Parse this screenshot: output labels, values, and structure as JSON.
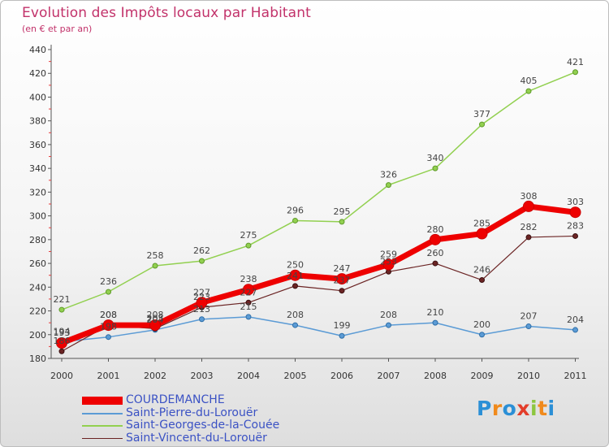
{
  "title": "Evolution des Impôts locaux par Habitant",
  "subtitle": "(en € et par an)",
  "logo": {
    "text": "Proxiti",
    "letters": [
      "P",
      "r",
      "o",
      "x",
      "i",
      "t",
      "i"
    ],
    "colors": [
      "#2b8fd6",
      "#f08a1c",
      "#2b8fd6",
      "#e33d2a",
      "#8cc63f",
      "#f08a1c",
      "#2b8fd6"
    ]
  },
  "chart_data": {
    "type": "line",
    "title": "Evolution des Impôts locaux par Habitant",
    "subtitle": "(en € et par an)",
    "categories": [
      "2000",
      "2001",
      "2002",
      "2003",
      "2004",
      "2005",
      "2006",
      "2007",
      "2008",
      "2009",
      "2010",
      "2011"
    ],
    "ylim": [
      180,
      440
    ],
    "yticks": [
      180,
      200,
      220,
      240,
      260,
      280,
      300,
      320,
      340,
      360,
      380,
      400,
      420,
      440
    ],
    "grid": false,
    "legend_position": "bottom-left",
    "series": [
      {
        "name": "COURDEMANCHE",
        "color": "#ee0000",
        "values": [
          193,
          208,
          208,
          227,
          238,
          250,
          247,
          259,
          280,
          285,
          308,
          303
        ]
      },
      {
        "name": "Saint-Pierre-du-Lorouër",
        "color": "#5b9bd5",
        "values": [
          194,
          198,
          204,
          213,
          215,
          208,
          199,
          208,
          210,
          200,
          207,
          204
        ]
      },
      {
        "name": "Saint-Georges-de-la-Couée",
        "color": "#92d050",
        "values": [
          221,
          236,
          258,
          262,
          275,
          296,
          295,
          326,
          340,
          377,
          405,
          421
        ]
      },
      {
        "name": "Saint-Vincent-du-Lorouër",
        "color": "#6b2424",
        "values": [
          186,
          208,
          205,
          223,
          227,
          241,
          237,
          253,
          260,
          246,
          282,
          283
        ]
      }
    ]
  }
}
